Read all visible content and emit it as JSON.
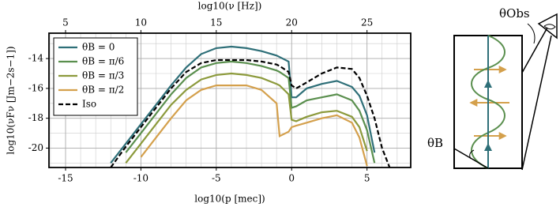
{
  "chart_data": {
    "type": "line",
    "x_label": "log10(p [mec])",
    "y_label": "log10(νFν [Jm−2s−1])",
    "x2_label": "log10(ν [Hz])",
    "x": [
      -12,
      -11,
      -10,
      -9,
      -8,
      -7,
      -6,
      -5,
      -4,
      -3,
      -2,
      -1,
      -0.8,
      -0.2,
      0,
      0.3,
      1,
      2,
      3,
      4,
      4.5,
      5,
      5.5,
      6,
      6.5
    ],
    "series": [
      {
        "name": "θB = 0",
        "color": "#2e6f78",
        "dash": false,
        "values": [
          -21.0,
          -19.7,
          -18.4,
          -17.1,
          -15.8,
          -14.6,
          -13.7,
          -13.3,
          -13.2,
          -13.3,
          -13.5,
          -13.8,
          -13.9,
          -14.2,
          -16.6,
          -16.6,
          -16.0,
          -15.7,
          -15.5,
          -15.9,
          -16.5,
          -17.8,
          -20.3,
          null,
          null
        ]
      },
      {
        "name": "θB = π/6",
        "color": "#5a8f4e",
        "dash": false,
        "values": [
          null,
          -20.3,
          -19.0,
          -17.7,
          -16.4,
          -15.3,
          -14.6,
          -14.3,
          -14.2,
          -14.3,
          -14.5,
          -14.8,
          -14.9,
          -15.3,
          -17.3,
          -17.2,
          -16.8,
          -16.6,
          -16.4,
          -16.8,
          -17.5,
          -18.8,
          -21.0,
          null,
          null
        ]
      },
      {
        "name": "θB = π/3",
        "color": "#8c9a3c",
        "dash": false,
        "values": [
          null,
          -21.0,
          -19.7,
          -18.4,
          -17.1,
          -16.1,
          -15.4,
          -15.1,
          -15.0,
          -15.1,
          -15.3,
          -15.7,
          -15.8,
          -16.4,
          -18.1,
          -18.2,
          -17.9,
          -17.6,
          -17.5,
          -17.9,
          -18.6,
          -20.2,
          null,
          null,
          null
        ]
      },
      {
        "name": "θB = π/2",
        "color": "#d4a04c",
        "dash": false,
        "values": [
          null,
          null,
          -20.6,
          -19.3,
          -18.0,
          -16.8,
          -16.1,
          -15.8,
          -15.8,
          -15.8,
          -16.1,
          -17.0,
          -19.2,
          -18.9,
          -18.6,
          -18.5,
          -18.3,
          -18.0,
          -17.8,
          -18.3,
          -19.3,
          -21.2,
          null,
          null,
          null
        ]
      },
      {
        "name": "Iso",
        "color": "#000000",
        "dash": true,
        "values": [
          -21.3,
          -19.9,
          -18.6,
          -17.3,
          -16.0,
          -14.9,
          -14.3,
          -14.1,
          -14.1,
          -14.1,
          -14.2,
          -14.4,
          -14.5,
          -14.9,
          -15.8,
          -16.0,
          -15.6,
          -15.0,
          -14.6,
          -14.7,
          -15.3,
          -16.5,
          -18.0,
          -20.0,
          -21.3
        ]
      }
    ],
    "xlim": [
      -16.1,
      7.9
    ],
    "xticks": [
      -15,
      -10,
      -5,
      0,
      5
    ],
    "x2lim": [
      3.9,
      27.9
    ],
    "x2ticks": [
      5,
      10,
      15,
      20,
      25
    ],
    "ylim": [
      -21.3,
      -12.3
    ],
    "yticks": [
      -14,
      -16,
      -18,
      -20
    ],
    "xminor": [
      -16,
      -14,
      -13,
      -12,
      -11,
      -9,
      -8,
      -7,
      -6,
      -4,
      -3,
      -2,
      -1,
      1,
      2,
      3,
      4,
      6,
      7
    ],
    "yminor": [
      -21,
      -19,
      -17,
      -15,
      -13
    ],
    "grid": true,
    "legend": "upper left"
  },
  "diagram": {
    "obs_label": "θObs",
    "b_label": "θB"
  }
}
